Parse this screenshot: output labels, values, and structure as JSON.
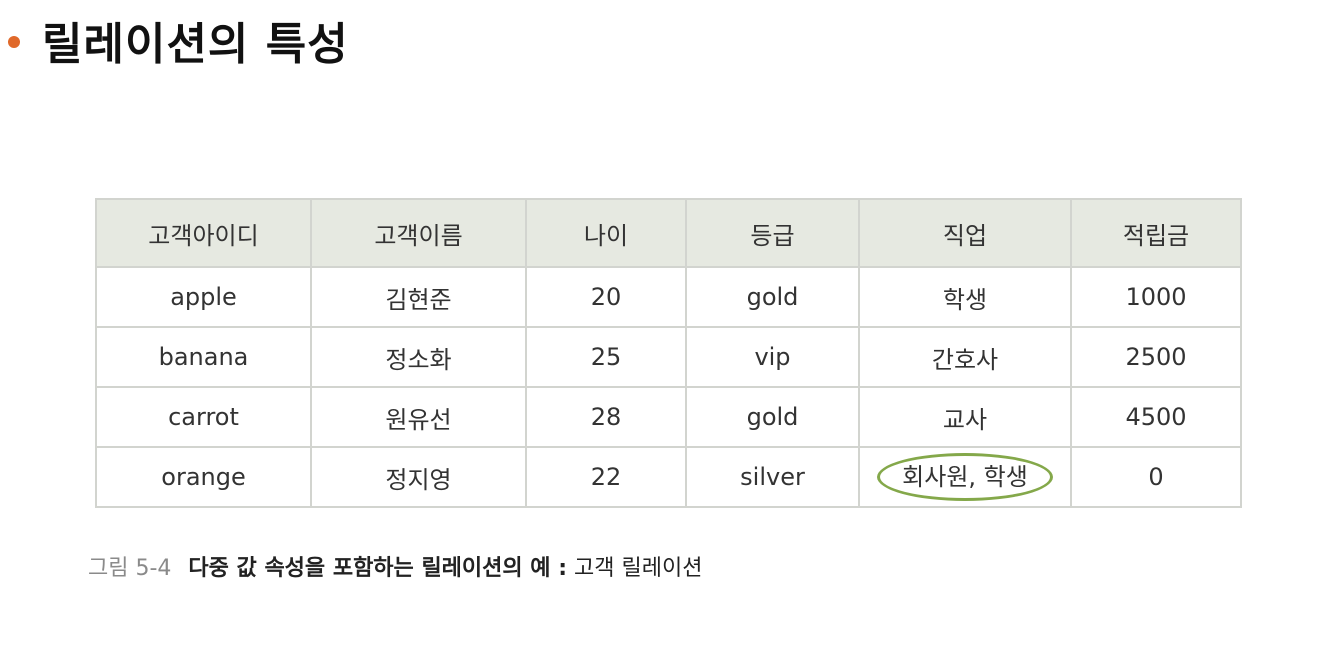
{
  "title": "릴레이션의 특성",
  "table": {
    "headers": [
      "고객아이디",
      "고객이름",
      "나이",
      "등급",
      "직업",
      "적립금"
    ],
    "rows": [
      [
        "apple",
        "김현준",
        "20",
        "gold",
        "학생",
        "1000"
      ],
      [
        "banana",
        "정소화",
        "25",
        "vip",
        "간호사",
        "2500"
      ],
      [
        "carrot",
        "원유선",
        "28",
        "gold",
        "교사",
        "4500"
      ],
      [
        "orange",
        "정지영",
        "22",
        "silver",
        "회사원, 학생",
        "0"
      ]
    ]
  },
  "caption": {
    "figure_number": "그림 5-4",
    "figure_title": "다중 값 속성을 포함하는 릴레이션의 예 :",
    "figure_subtitle": "고객 릴레이션"
  },
  "highlight_color": "#84a84a",
  "bullet_color": "#e0692a",
  "header_bg": "#e6e9e1"
}
